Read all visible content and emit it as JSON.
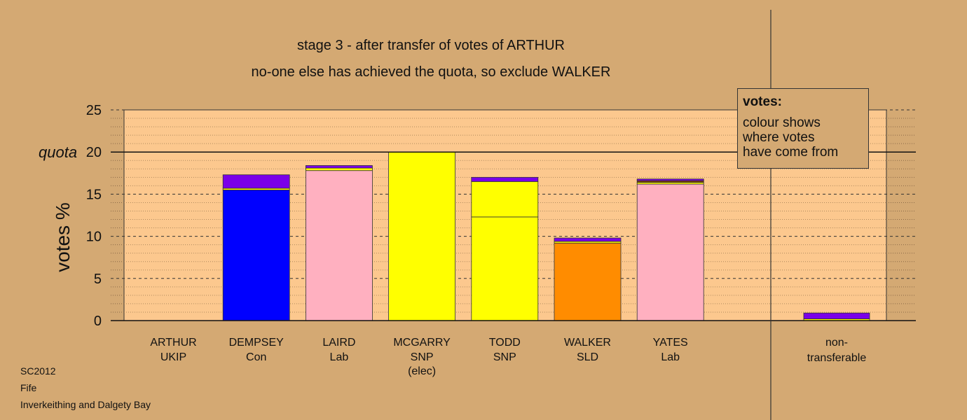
{
  "title_line1": "stage 3 - after transfer of votes of ARTHUR",
  "title_line2": "no-one else has achieved the quota, so exclude WALKER",
  "footer": [
    "SC2012",
    "Fife",
    "Inverkeithing and Dalgety Bay"
  ],
  "legend": {
    "title": "votes:",
    "body": "colour shows\nwhere votes\nhave come from"
  },
  "colors": {
    "background": "#d4a973",
    "plot_background": "#fcc88e",
    "UKIP": "#7a00e8",
    "Con": "#0000ff",
    "Lab": "#ffb0c0",
    "SNP": "#ffff00",
    "SLD": "#ff8c00",
    "Lab_Yates_extra": "#7a3a10"
  },
  "chart_data": {
    "type": "bar",
    "stacked": true,
    "ylabel": "votes %",
    "quota_label": "quota",
    "quota": 20,
    "ylim": [
      0,
      25
    ],
    "yticks": [
      0,
      5,
      10,
      15,
      20,
      25
    ],
    "grid": true,
    "legend_position": "top-right",
    "categories": [
      {
        "name": "ARTHUR",
        "party": "UKIP",
        "note": ""
      },
      {
        "name": "DEMPSEY",
        "party": "Con",
        "note": ""
      },
      {
        "name": "LAIRD",
        "party": "Lab",
        "note": ""
      },
      {
        "name": "MCGARRY",
        "party": "SNP",
        "note": "(elec)"
      },
      {
        "name": "TODD",
        "party": "SNP",
        "note": ""
      },
      {
        "name": "WALKER",
        "party": "SLD",
        "note": ""
      },
      {
        "name": "YATES",
        "party": "Lab",
        "note": ""
      }
    ],
    "extra_category": {
      "name": "non-",
      "party": "transferable"
    },
    "stacks": [
      [],
      [
        {
          "source": "Con",
          "value": 15.5
        },
        {
          "source": "SNP",
          "value": 0.2
        },
        {
          "source": "UKIP",
          "value": 1.6
        }
      ],
      [
        {
          "source": "Lab",
          "value": 17.8
        },
        {
          "source": "SNP",
          "value": 0.3
        },
        {
          "source": "UKIP",
          "value": 0.3
        }
      ],
      [
        {
          "source": "SNP",
          "value": 20.0
        }
      ],
      [
        {
          "source": "SNP",
          "value": 12.3
        },
        {
          "source": "SNP",
          "value": 4.2
        },
        {
          "source": "UKIP",
          "value": 0.5
        }
      ],
      [
        {
          "source": "SLD",
          "value": 9.2
        },
        {
          "source": "SNP",
          "value": 0.2
        },
        {
          "source": "UKIP",
          "value": 0.4
        }
      ],
      [
        {
          "source": "Lab",
          "value": 16.2
        },
        {
          "source": "SNP",
          "value": 0.2
        },
        {
          "source": "Lab_Yates_extra",
          "value": 0.2
        },
        {
          "source": "UKIP",
          "value": 0.2
        }
      ]
    ],
    "nontransferable_stack": [
      {
        "source": "SNP",
        "value": 0.2
      },
      {
        "source": "UKIP",
        "value": 0.7
      }
    ]
  }
}
